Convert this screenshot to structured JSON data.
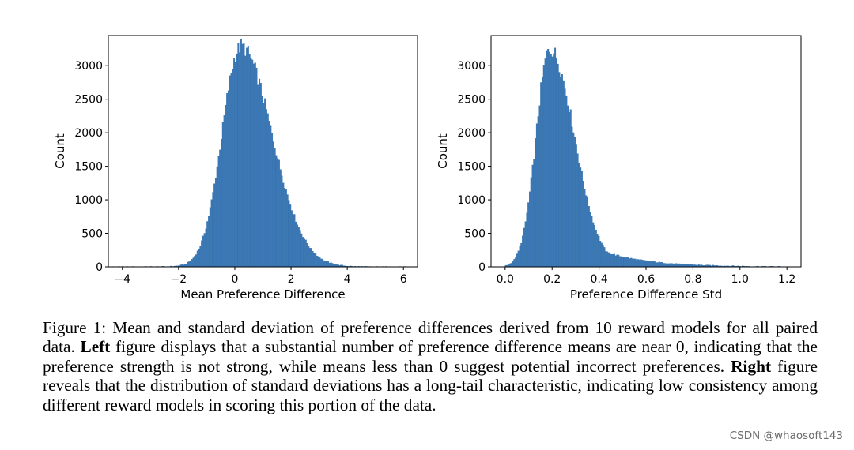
{
  "chart_data": [
    {
      "type": "histogram",
      "xlabel": "Mean Preference Difference",
      "ylabel": "Count",
      "xlim": [
        -4.5,
        6.5
      ],
      "ylim": [
        0,
        3450
      ],
      "xticks": [
        -4,
        -2,
        0,
        2,
        4,
        6
      ],
      "xtick_labels": [
        "−4",
        "−2",
        "0",
        "2",
        "4",
        "6"
      ],
      "yticks": [
        0,
        500,
        1000,
        1500,
        2000,
        2500,
        3000
      ],
      "ytick_labels": [
        "0",
        "500",
        "1000",
        "1500",
        "2000",
        "2500",
        "3000"
      ],
      "bins": {
        "start": -4.5,
        "end": 6.2,
        "width": 0.05
      },
      "distribution": {
        "shape": "skewed-normal",
        "peak_x": 0.2,
        "peak_count": 3250,
        "sd_left": 0.66,
        "sd_right": 1.12
      },
      "color": "#3b78b5"
    },
    {
      "type": "histogram",
      "xlabel": "Preference Difference Std",
      "ylabel": "Count",
      "xlim": [
        -0.06,
        1.26
      ],
      "ylim": [
        0,
        3450
      ],
      "xticks": [
        0.0,
        0.2,
        0.4,
        0.6,
        0.8,
        1.0,
        1.2
      ],
      "xtick_labels": [
        "0.0",
        "0.2",
        "0.4",
        "0.6",
        "0.8",
        "1.0",
        "1.2"
      ],
      "yticks": [
        0,
        500,
        1000,
        1500,
        2000,
        2500,
        3000
      ],
      "ytick_labels": [
        "0",
        "500",
        "1000",
        "1500",
        "2000",
        "2500",
        "3000"
      ],
      "bins": {
        "start": 0.0,
        "end": 1.2,
        "width": 0.006
      },
      "distribution": {
        "shape": "long-tail",
        "peak_x": 0.19,
        "peak_count": 3250,
        "sd_left": 0.058,
        "sd_right": 0.105,
        "tail_count_at_0.6": 200,
        "tail_count_at_1.0": 30
      },
      "color": "#3b78b5"
    }
  ],
  "caption": {
    "label": "Figure 1: ",
    "text_1": "Mean and standard deviation of preference differences derived from ",
    "model_count": "10",
    "text_2": " reward models for all paired data. ",
    "left_bold": "Left",
    "text_3": " figure displays that a substantial number of preference difference means are near ",
    "zero_1": "0",
    "text_4": ", indicating that the preference strength is not strong, while means less than ",
    "zero_2": "0",
    "text_5": " suggest potential incorrect preferences. ",
    "right_bold": "Right",
    "text_6": " figure reveals that the distribution of standard deviations has a long-tail characteristic, indicating low consistency among different reward models in scoring this portion of the data."
  },
  "watermark": "CSDN @whaosoft143"
}
